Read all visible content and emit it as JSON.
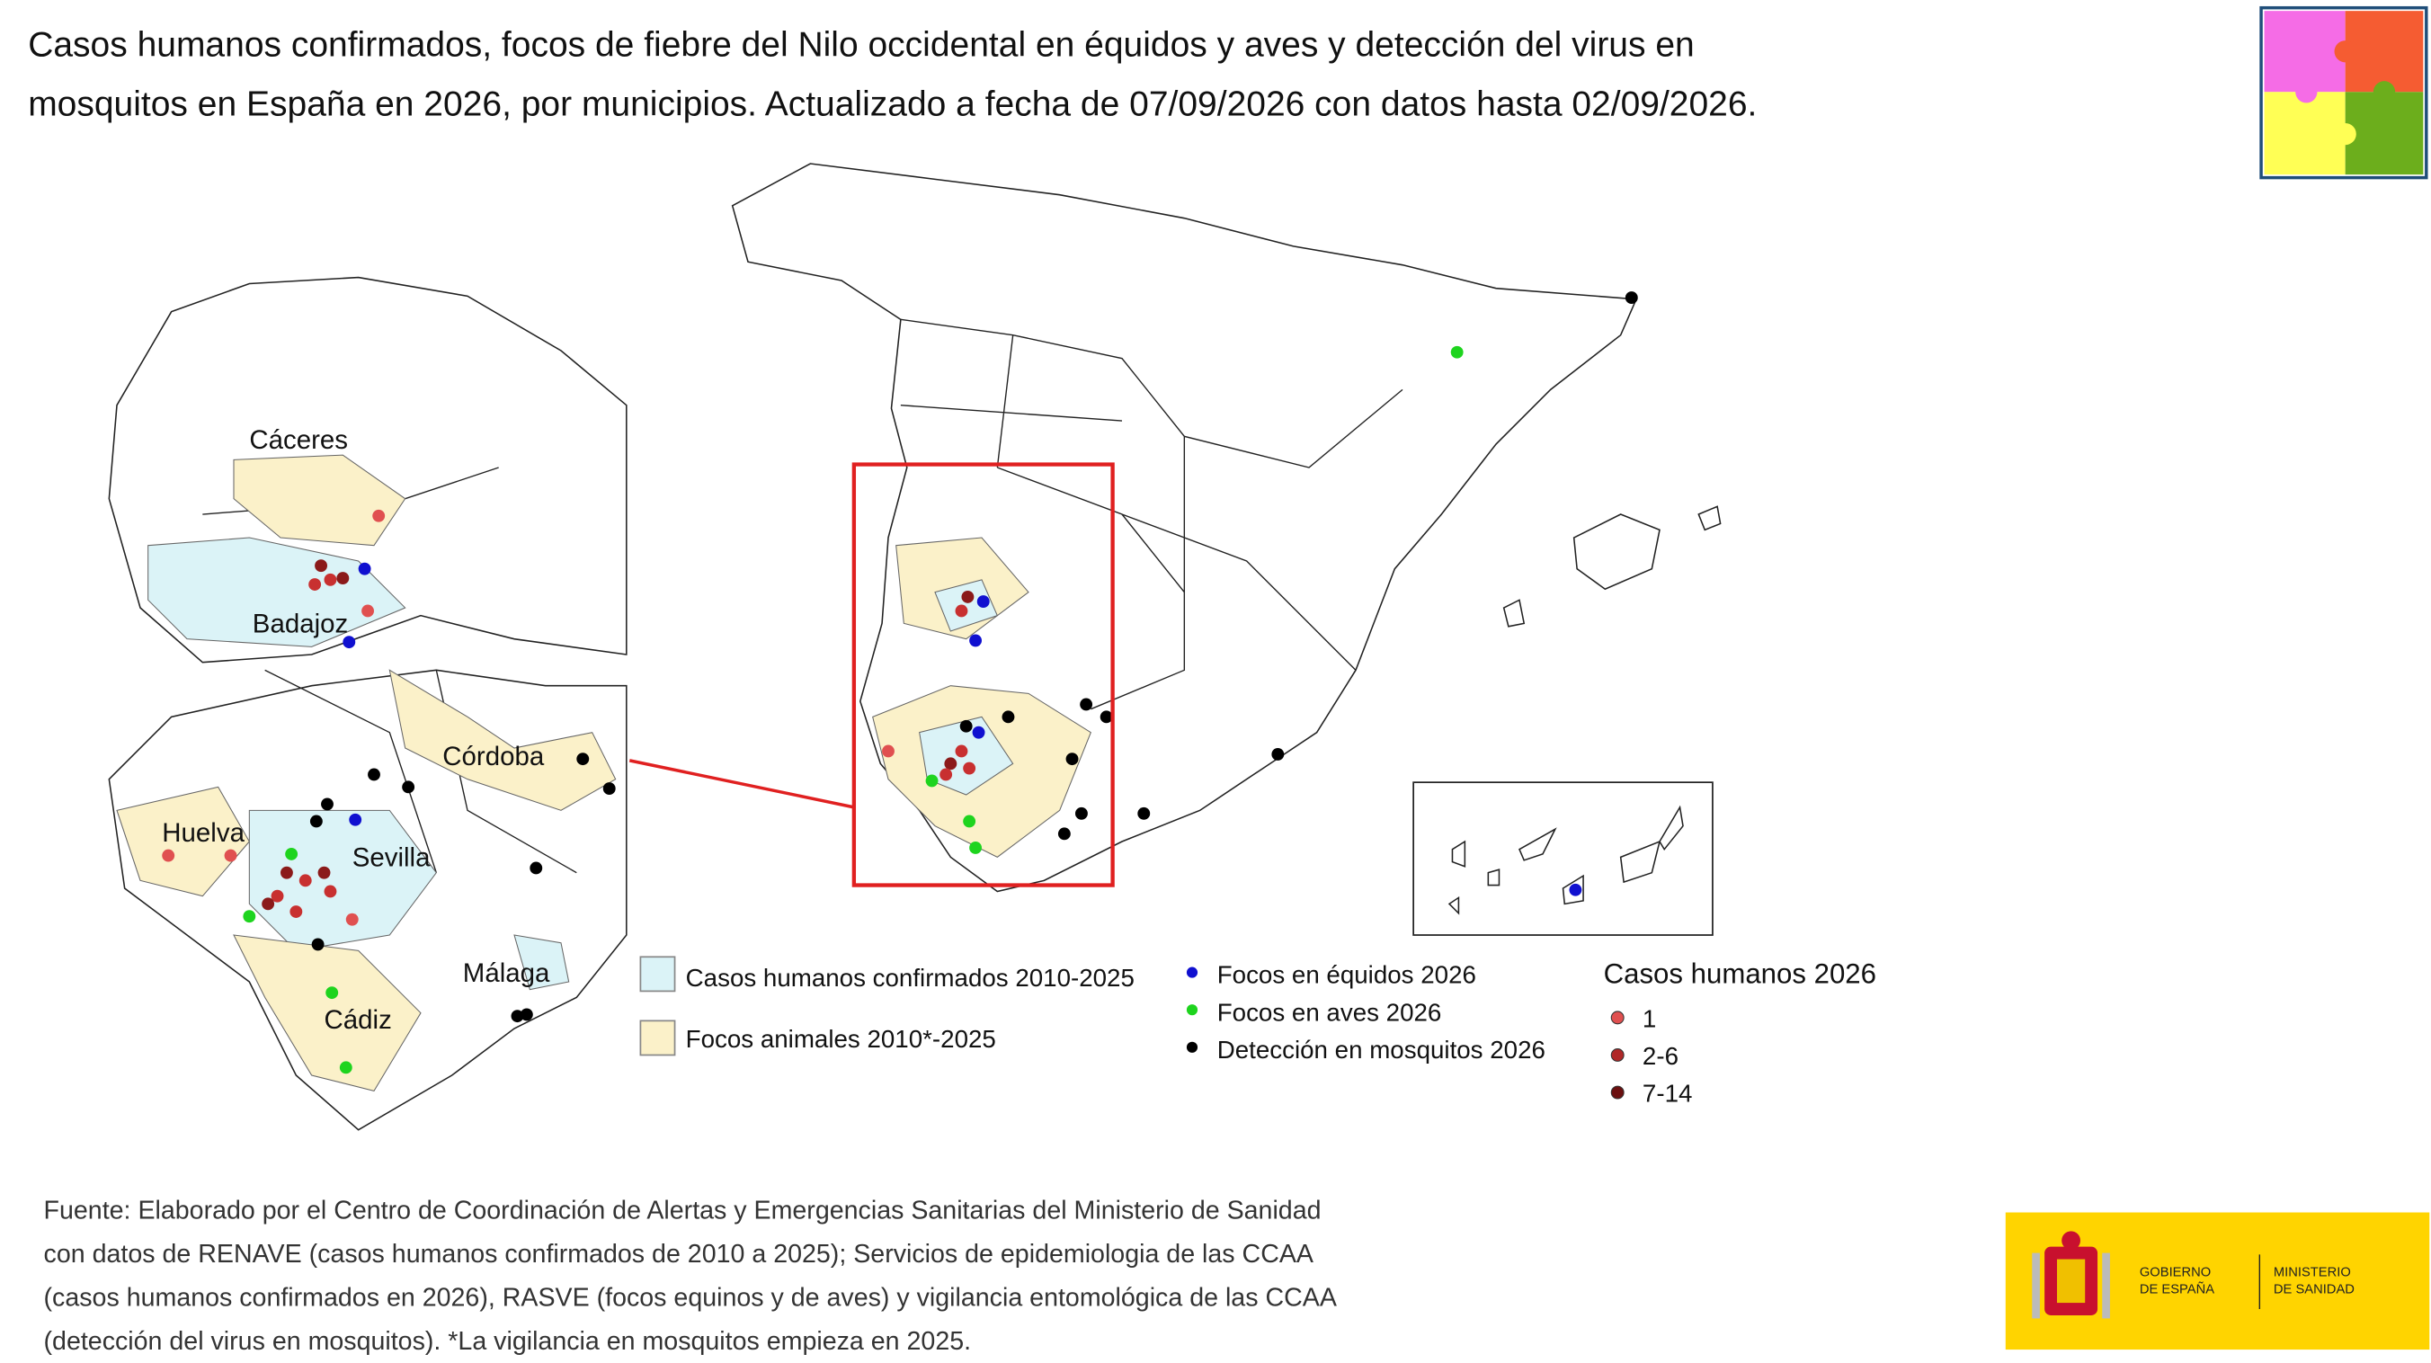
{
  "header": {
    "title": [
      "Casos humanos confirmados, focos de fiebre del Nilo occidental en équidos y aves y detección del virus en",
      "mosquitos en España en 2026, por municipios. Actualizado a fecha de 07/09/2026 con datos hasta 02/09/2026."
    ]
  },
  "map": {
    "places": [
      "Cáceres",
      "Badajoz",
      "Córdoba",
      "Huelva",
      "Sevilla",
      "Málaga",
      "Cádiz"
    ]
  },
  "legend": {
    "areas": [
      "Casos humanos confirmados 2010-2025",
      "Focos animales 2010*-2025"
    ],
    "points": [
      "Focos en équidos 2026",
      "Focos en aves 2026",
      "Detección en mosquitos 2026"
    ],
    "cases_title": "Casos humanos 2026",
    "cases": [
      "1",
      "2-6",
      "7-14"
    ]
  },
  "footer": {
    "source": [
      "Fuente: Elaborado por el Centro de Coordinación de Alertas y Emergencias Sanitarias del Ministerio de Sanidad",
      "con datos de RENAVE (casos humanos confirmados de 2010 a 2025); Servicios de epidemiologia de las CCAA",
      "(casos humanos confirmados en 2026), RASVE (focos equinos y de aves) y vigilancia entomológica de las CCAA",
      "(detección del virus en mosquitos). *La vigilancia en mosquitos empieza en 2025."
    ],
    "logo": [
      "GOBIERNO",
      "DE ESPAÑA",
      "MINISTERIO",
      "DE SANIDAD"
    ]
  }
}
